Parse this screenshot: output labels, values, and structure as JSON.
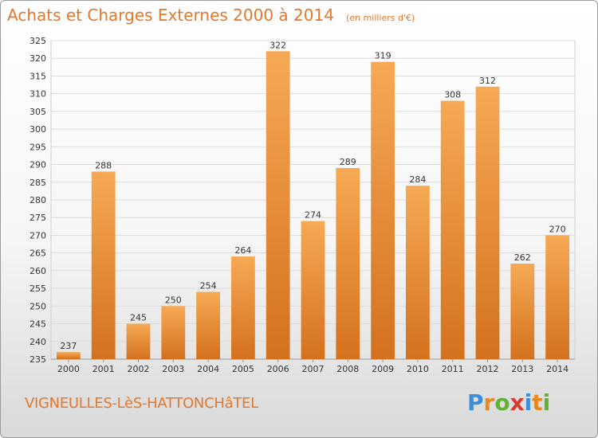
{
  "header": {
    "title": "Achats et Charges Externes 2000 à 2014",
    "subtitle": "(en milliers d'€)"
  },
  "footer": {
    "commune": "VIGNEULLES-LèS-HATTONCHâTEL",
    "brand_letters": [
      "P",
      "r",
      "o",
      "x",
      "i",
      "t",
      "i"
    ],
    "brand_colors": [
      "#3a8fd6",
      "#e8891f",
      "#5fb233",
      "#d83b2b",
      "#3a8fd6",
      "#e8891f",
      "#5fb233"
    ]
  },
  "colors": {
    "bar_light": "#f6a954",
    "bar_dark": "#d4711d",
    "title": "#e2782c"
  },
  "chart_data": {
    "type": "bar",
    "title": "Achats et Charges Externes 2000 à 2014",
    "subtitle": "(en milliers d'€)",
    "categories": [
      "2000",
      "2001",
      "2002",
      "2003",
      "2004",
      "2005",
      "2006",
      "2007",
      "2008",
      "2009",
      "2010",
      "2011",
      "2012",
      "2013",
      "2014"
    ],
    "values": [
      237,
      288,
      245,
      250,
      254,
      264,
      322,
      274,
      289,
      319,
      284,
      308,
      312,
      262,
      270
    ],
    "ylim": [
      235,
      325
    ],
    "yticks": [
      235,
      240,
      245,
      250,
      255,
      260,
      265,
      270,
      275,
      280,
      285,
      290,
      295,
      300,
      305,
      310,
      315,
      320,
      325
    ],
    "grid": true
  }
}
